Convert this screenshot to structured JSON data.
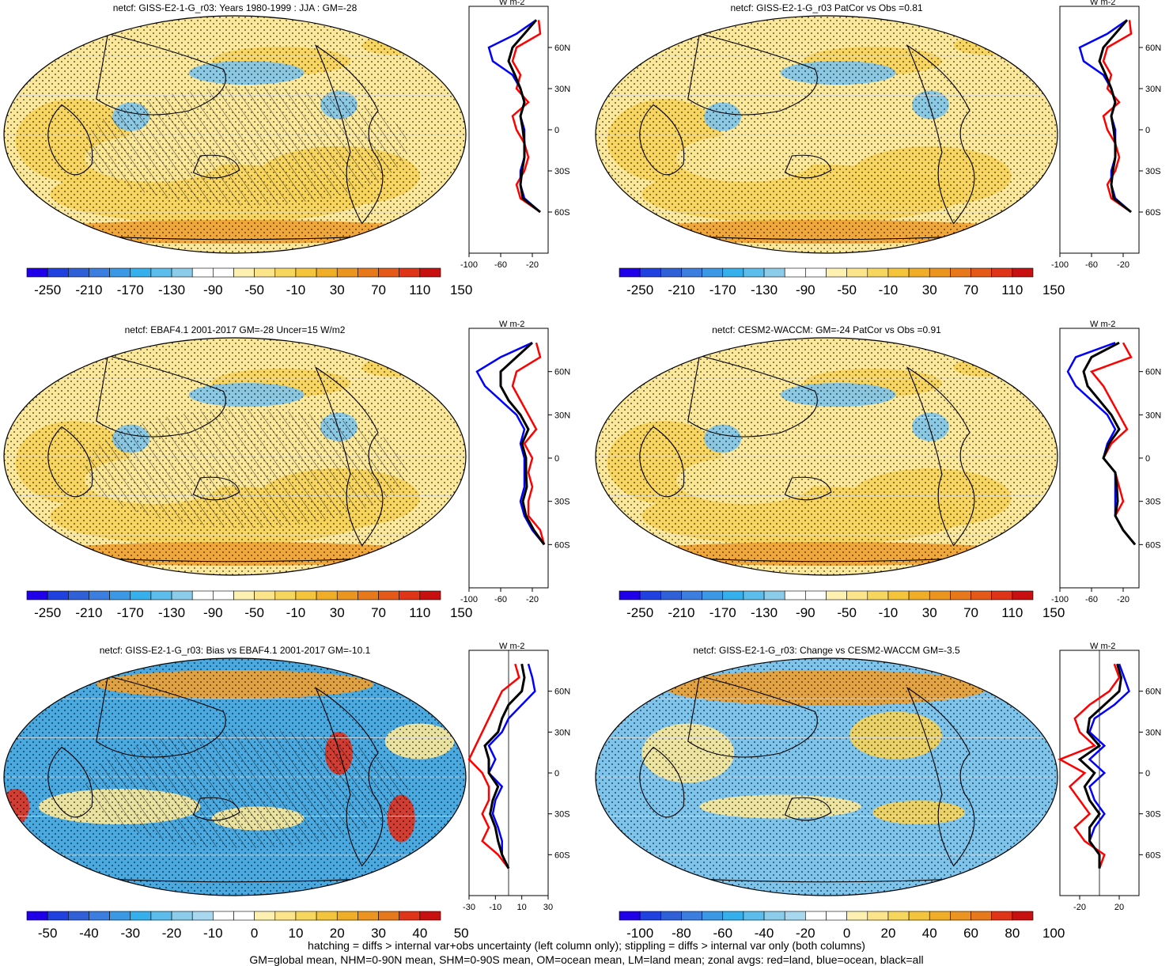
{
  "colors": {
    "ocean_blue": "#4aa8e0",
    "light_blue": "#7ec4ec",
    "pale_yellow": "#fbe89a",
    "yellow": "#f6d35a",
    "orange": "#f0a030",
    "red": "#e03020",
    "land_line": "#000000",
    "zonal_land": "#ff0000",
    "zonal_ocean": "#0000ff",
    "zonal_all": "#000000"
  },
  "colorbar_main": [
    "#2000e8",
    "#2040e0",
    "#3060d8",
    "#3c7ee0",
    "#3a98e4",
    "#36b0ec",
    "#5cbcec",
    "#8ccceb",
    "#ffffff",
    "#ffffff",
    "#fdf0b0",
    "#fbe48a",
    "#f7d65e",
    "#f3c43c",
    "#f0ae28",
    "#ec9420",
    "#e8781c",
    "#e45818",
    "#e03418",
    "#c81010"
  ],
  "colorbar_diff": [
    "#2000e8",
    "#2040e0",
    "#3060d8",
    "#3c7ee0",
    "#3a98e4",
    "#36b0ec",
    "#5cbcec",
    "#8ccceb",
    "#a8d8f0",
    "#ffffff",
    "#ffffff",
    "#fdf0b0",
    "#fbe48a",
    "#f7d65e",
    "#f3c43c",
    "#f0ae28",
    "#ec9420",
    "#e8781c",
    "#e03418",
    "#c81010"
  ],
  "chart_data": [
    {
      "type": "heatmap",
      "title": "netcf: GISS-E2-1-G_r03: Years 1980-1999 : JJA : GM=-28",
      "colorbar_ticks": [
        "-250",
        "-210",
        "-170",
        "-130",
        "-90",
        "-50",
        "-10",
        "30",
        "70",
        "110",
        "150"
      ],
      "zonal": {
        "yticks": [
          "60N",
          "30N",
          "0",
          "30S",
          "60S"
        ],
        "xticks": [
          "-100",
          "-60",
          "-20"
        ],
        "xlim": [
          -100,
          0
        ],
        "units": "W m-2",
        "lat": [
          80,
          70,
          60,
          50,
          40,
          30,
          20,
          10,
          0,
          -10,
          -20,
          -30,
          -40,
          -50,
          -60
        ],
        "land": [
          -12,
          -10,
          -40,
          -45,
          -35,
          -40,
          -25,
          -45,
          -40,
          -30,
          -25,
          -30,
          -40,
          -35,
          -10
        ],
        "ocean": [
          -15,
          -40,
          -75,
          -70,
          -45,
          -35,
          -30,
          -35,
          -30,
          -30,
          -30,
          -35,
          -35,
          -30,
          -10
        ],
        "all": [
          -15,
          -30,
          -45,
          -50,
          -42,
          -35,
          -30,
          -35,
          -32,
          -30,
          -30,
          -33,
          -35,
          -32,
          -10
        ]
      }
    },
    {
      "type": "heatmap",
      "title": "netcf: GISS-E2-1-G_r03 PatCor vs Obs =0.81",
      "colorbar_ticks": [
        "-250",
        "-210",
        "-170",
        "-130",
        "-90",
        "-50",
        "-10",
        "30",
        "70",
        "110",
        "150"
      ],
      "zonal": {
        "yticks": [
          "60N",
          "30N",
          "0",
          "30S",
          "60S"
        ],
        "xticks": [
          "-100",
          "-60",
          "-20"
        ],
        "xlim": [
          -100,
          0
        ],
        "units": "W m-2",
        "lat": [
          80,
          70,
          60,
          50,
          40,
          30,
          20,
          10,
          0,
          -10,
          -20,
          -30,
          -40,
          -50,
          -60
        ],
        "land": [
          -12,
          -10,
          -40,
          -45,
          -35,
          -40,
          -25,
          -45,
          -40,
          -30,
          -25,
          -30,
          -40,
          -35,
          -10
        ],
        "ocean": [
          -15,
          -40,
          -75,
          -70,
          -45,
          -35,
          -30,
          -35,
          -30,
          -30,
          -30,
          -35,
          -35,
          -30,
          -10
        ],
        "all": [
          -15,
          -30,
          -45,
          -50,
          -42,
          -35,
          -30,
          -35,
          -32,
          -30,
          -30,
          -33,
          -35,
          -32,
          -10
        ]
      }
    },
    {
      "type": "heatmap",
      "title": "netcf: EBAF4.1 2001-2017 GM=-28 Uncer=15 W/m2",
      "colorbar_ticks": [
        "-250",
        "-210",
        "-170",
        "-130",
        "-90",
        "-50",
        "-10",
        "30",
        "70",
        "110",
        "150"
      ],
      "zonal": {
        "yticks": [
          "60N",
          "30N",
          "0",
          "30S",
          "60S"
        ],
        "xticks": [
          "-100",
          "-60",
          "-20"
        ],
        "xlim": [
          -100,
          0
        ],
        "units": "W m-2",
        "lat": [
          80,
          70,
          60,
          50,
          40,
          30,
          20,
          10,
          0,
          -10,
          -20,
          -30,
          -40,
          -50,
          -60
        ],
        "land": [
          -15,
          -10,
          -40,
          -45,
          -35,
          -25,
          -15,
          -30,
          -20,
          -25,
          -20,
          -25,
          -25,
          -10,
          -5
        ],
        "ocean": [
          -20,
          -60,
          -90,
          -80,
          -60,
          -40,
          -30,
          -35,
          -30,
          -30,
          -30,
          -35,
          -30,
          -20,
          -5
        ],
        "all": [
          -20,
          -40,
          -60,
          -60,
          -50,
          -35,
          -25,
          -33,
          -28,
          -28,
          -27,
          -32,
          -28,
          -18,
          -5
        ]
      }
    },
    {
      "type": "heatmap",
      "title": "netcf: CESM2-WACCM: GM=-24 PatCor vs Obs =0.91",
      "colorbar_ticks": [
        "-250",
        "-210",
        "-170",
        "-130",
        "-90",
        "-50",
        "-10",
        "30",
        "70",
        "110",
        "150"
      ],
      "zonal": {
        "yticks": [
          "60N",
          "30N",
          "0",
          "30S",
          "60S"
        ],
        "xticks": [
          "-100",
          "-60",
          "-20"
        ],
        "xlim": [
          -100,
          0
        ],
        "units": "W m-2",
        "lat": [
          80,
          70,
          60,
          50,
          40,
          30,
          20,
          10,
          0,
          -10,
          -20,
          -30,
          -40,
          -50,
          -60
        ],
        "land": [
          -20,
          -10,
          -60,
          -45,
          -35,
          -25,
          -15,
          -35,
          -45,
          -30,
          -25,
          -20,
          -30,
          -20,
          -5
        ],
        "ocean": [
          -30,
          -80,
          -90,
          -80,
          -60,
          -40,
          -30,
          -40,
          -45,
          -30,
          -30,
          -30,
          -30,
          -20,
          -5
        ],
        "all": [
          -25,
          -60,
          -70,
          -65,
          -50,
          -35,
          -25,
          -38,
          -45,
          -30,
          -28,
          -27,
          -30,
          -20,
          -5
        ]
      }
    },
    {
      "type": "heatmap",
      "title": "netcf: GISS-E2-1-G_r03: Bias vs EBAF4.1 2001-2017 GM=-10.1",
      "colorbar_ticks": [
        "-50",
        "-40",
        "-30",
        "-20",
        "-10",
        "0",
        "10",
        "20",
        "30",
        "40",
        "50"
      ],
      "zonal": {
        "yticks": [
          "60N",
          "30N",
          "0",
          "30S",
          "60S"
        ],
        "xticks": [
          "-30",
          "-10",
          "10",
          "30"
        ],
        "xlim": [
          -30,
          30
        ],
        "units": "W m-2",
        "lat": [
          80,
          70,
          60,
          50,
          40,
          30,
          20,
          10,
          0,
          -10,
          -20,
          -30,
          -40,
          -50,
          -60,
          -70
        ],
        "land": [
          5,
          8,
          -5,
          -10,
          -15,
          -20,
          -25,
          -30,
          -20,
          -15,
          -15,
          -20,
          -15,
          -20,
          -8,
          0
        ],
        "ocean": [
          15,
          18,
          20,
          10,
          0,
          -5,
          -15,
          -10,
          -15,
          -5,
          -10,
          -12,
          -8,
          -5,
          -5,
          0
        ],
        "all": [
          10,
          12,
          10,
          0,
          -5,
          -8,
          -18,
          -15,
          -15,
          -8,
          -12,
          -14,
          -10,
          -8,
          -5,
          0
        ]
      }
    },
    {
      "type": "heatmap",
      "title": "netcf: GISS-E2-1-G_r03: Change vs CESM2-WACCM GM=-3.5",
      "colorbar_ticks": [
        "-100",
        "-80",
        "-60",
        "-40",
        "-20",
        "0",
        "20",
        "40",
        "60",
        "80",
        "100"
      ],
      "zonal": {
        "yticks": [
          "60N",
          "30N",
          "0",
          "30S",
          "60S"
        ],
        "xticks": [
          "-20",
          "20"
        ],
        "xlim": [
          -40,
          40
        ],
        "units": "W m-2",
        "lat": [
          80,
          70,
          60,
          50,
          40,
          30,
          20,
          10,
          0,
          -10,
          -20,
          -30,
          -40,
          -50,
          -60,
          -70
        ],
        "land": [
          15,
          20,
          10,
          -10,
          -25,
          -20,
          -5,
          -40,
          -15,
          -30,
          -20,
          -10,
          -25,
          -15,
          5,
          0
        ],
        "ocean": [
          20,
          25,
          30,
          15,
          -5,
          -10,
          5,
          -10,
          5,
          -10,
          -5,
          5,
          -5,
          -10,
          0,
          0
        ],
        "all": [
          18,
          22,
          20,
          5,
          -10,
          -12,
          0,
          -20,
          -5,
          -15,
          -10,
          0,
          -10,
          -10,
          0,
          0
        ]
      }
    }
  ],
  "footer": {
    "line1": "hatching = diffs > internal var+obs uncertainty (left column only); stippling = diffs > internal var only (both columns)",
    "line2": "GM=global mean, NHM=0-90N mean, SHM=0-90S mean, OM=ocean mean, LM=land mean; zonal avgs: red=land, blue=ocean, black=all"
  }
}
